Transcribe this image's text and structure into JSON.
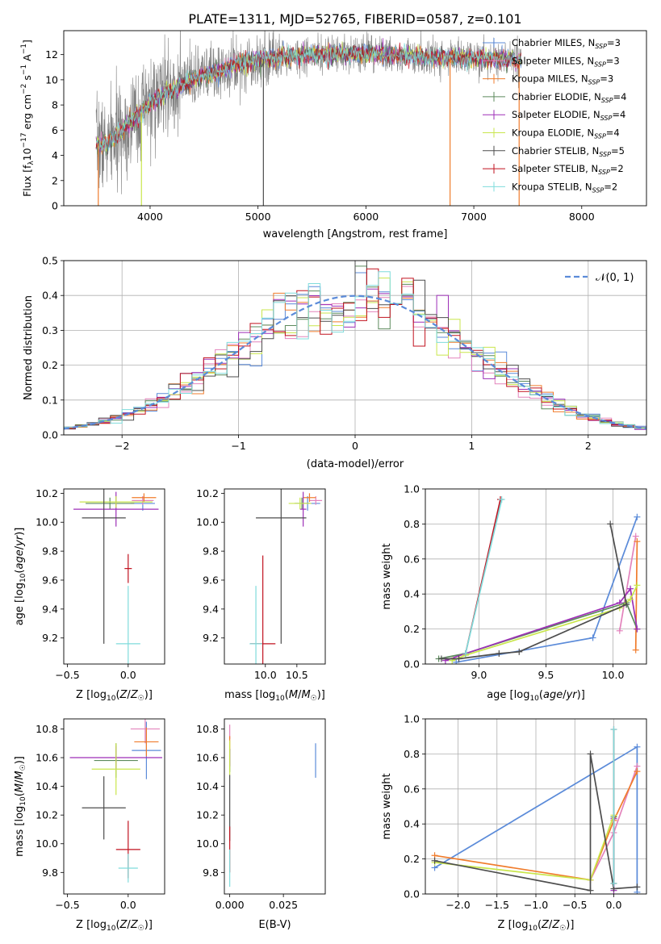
{
  "title": "PLATE=1311, MJD=52765, FIBERID=0587, z=0.101",
  "colors": {
    "Chabrier MILES": "#5b8bd9",
    "Salpeter MILES": "#e383bc",
    "Kroupa MILES": "#f07c2c",
    "Chabrier ELODIE": "#5c8a5c",
    "Salpeter ELODIE": "#9d2fb7",
    "Kroupa ELODIE": "#c9e64c",
    "Chabrier STELIB": "#4d4d4d",
    "Salpeter STELIB": "#c1121f",
    "Kroupa STELIB": "#7fdcdc"
  },
  "chart_data": [
    {
      "id": "spectrum",
      "type": "line",
      "xlabel": "wavelength [Angstrom, rest frame]",
      "ylabel": "Flux [f_λ 10^-17 erg cm^-2 s^-1 A^-1]",
      "xlim": [
        3200,
        8600
      ],
      "ylim": [
        0,
        13.9
      ],
      "xticks": [
        4000,
        5000,
        6000,
        7000,
        8000
      ],
      "yticks": [
        0,
        2,
        4,
        6,
        8,
        10,
        12
      ],
      "grid": false,
      "legend_position": "right",
      "legend": [
        {
          "name": "Chabrier MILES",
          "label": "Chabrier MILES, N",
          "sub": "SSP",
          "suffix": "=3"
        },
        {
          "name": "Salpeter MILES",
          "label": "Salpeter MILES, N",
          "sub": "SSP",
          "suffix": "=3"
        },
        {
          "name": "Kroupa MILES",
          "label": "Kroupa MILES, N",
          "sub": "SSP",
          "suffix": "=3"
        },
        {
          "name": "Chabrier ELODIE",
          "label": "Chabrier ELODIE, N",
          "sub": "SSP",
          "suffix": "=4"
        },
        {
          "name": "Salpeter ELODIE",
          "label": "Salpeter ELODIE, N",
          "sub": "SSP",
          "suffix": "=4"
        },
        {
          "name": "Kroupa ELODIE",
          "label": "Kroupa ELODIE, N",
          "sub": "SSP",
          "suffix": "=4"
        },
        {
          "name": "Chabrier STELIB",
          "label": "Chabrier STELIB, N",
          "sub": "SSP",
          "suffix": "=5"
        },
        {
          "name": "Salpeter STELIB",
          "label": "Salpeter STELIB, N",
          "sub": "SSP",
          "suffix": "=2"
        },
        {
          "name": "Kroupa STELIB",
          "label": "Kroupa STELIB, N",
          "sub": "SSP",
          "suffix": "=2"
        }
      ],
      "model_continuum": {
        "x": [
          3500,
          3600,
          3700,
          3800,
          3900,
          4000,
          4100,
          4200,
          4300,
          4400,
          4500,
          4600,
          4800,
          5000,
          5200,
          5400,
          5600,
          5800,
          6000,
          6200,
          6400,
          6600,
          6800,
          7000,
          7200,
          7400
        ],
        "y": [
          5.0,
          4.8,
          5.6,
          6.6,
          7.2,
          8.2,
          8.8,
          9.2,
          9.6,
          10.0,
          10.3,
          10.6,
          11.2,
          11.6,
          11.8,
          11.9,
          12.0,
          12.0,
          12.1,
          12.0,
          11.9,
          11.8,
          11.8,
          11.7,
          11.7,
          11.6
        ]
      },
      "observed_series": "gray",
      "dropouts": [
        {
          "x": 3520,
          "color": "#f07c2c"
        },
        {
          "x": 3920,
          "color": "#c9e64c"
        },
        {
          "x": 5050,
          "color": "#4d4d4d"
        },
        {
          "x": 6780,
          "color": "#f07c2c"
        },
        {
          "x": 7420,
          "color": "#f07c2c"
        }
      ]
    },
    {
      "id": "residuals",
      "type": "histogram",
      "xlabel": "(data-model)/error",
      "ylabel": "Normed distribution",
      "xlim": [
        -2.5,
        2.5
      ],
      "ylim": [
        0,
        0.5
      ],
      "xticks": [
        -2,
        -1,
        0,
        1,
        2
      ],
      "yticks": [
        0.0,
        0.1,
        0.2,
        0.3,
        0.4,
        0.5
      ],
      "grid": true,
      "legend_label": "𝒩(0, 1)",
      "legend_position": "upper right",
      "reference_curve": "normal(0,1)",
      "bin_width": 0.1
    },
    {
      "id": "age_vs_Z",
      "type": "errorbar",
      "xlabel": "Z [log₁₀(Z/Z☉)]",
      "ylabel": "age  [log₁₀(age/yr)]",
      "xlim": [
        -0.53,
        0.3
      ],
      "ylim": [
        9.02,
        10.23
      ],
      "xticks": [
        -0.5,
        0.0
      ],
      "xtick_labels": [
        "−0.5",
        "0.0"
      ],
      "yticks": [
        9.2,
        9.4,
        9.6,
        9.8,
        10.0,
        10.2
      ],
      "points": [
        {
          "name": "Chabrier MILES",
          "x": 0.12,
          "xerr": 0.1,
          "y": 10.13,
          "yerr": 0.05
        },
        {
          "name": "Salpeter MILES",
          "x": 0.12,
          "xerr": 0.09,
          "y": 10.15,
          "yerr": 0.03
        },
        {
          "name": "Kroupa MILES",
          "x": 0.13,
          "xerr": 0.1,
          "y": 10.17,
          "yerr": 0.03
        },
        {
          "name": "Chabrier ELODIE",
          "x": -0.15,
          "xerr": 0.2,
          "y": 10.13,
          "yerr": 0.04
        },
        {
          "name": "Salpeter ELODIE",
          "x": -0.1,
          "xerr": 0.35,
          "y": 10.09,
          "yerr": 0.12
        },
        {
          "name": "Kroupa ELODIE",
          "x": -0.1,
          "xerr": 0.3,
          "y": 10.14,
          "yerr": 0.04
        },
        {
          "name": "Chabrier STELIB",
          "x": -0.2,
          "xerr": 0.18,
          "y": 10.03,
          "yerr": 0.87
        },
        {
          "name": "Salpeter STELIB",
          "x": 0.0,
          "xerr": 0.03,
          "y": 9.68,
          "yerr": 0.1
        },
        {
          "name": "Kroupa STELIB",
          "x": 0.0,
          "xerr": 0.1,
          "y": 9.16,
          "yerr": 0.4
        }
      ]
    },
    {
      "id": "age_vs_mass",
      "type": "errorbar",
      "xlabel": "mass [log₁₀(M/M☉)]",
      "ylabel": "",
      "xlim": [
        9.35,
        10.95
      ],
      "ylim": [
        9.02,
        10.23
      ],
      "xticks": [
        10.0,
        10.5
      ],
      "yticks": [
        9.2,
        9.4,
        9.6,
        9.8,
        10.0,
        10.2
      ],
      "points": [
        {
          "name": "Chabrier MILES",
          "x": 10.67,
          "xerr": 0.2,
          "y": 10.13,
          "yerr": 0.05
        },
        {
          "name": "Salpeter MILES",
          "x": 10.8,
          "xerr": 0.1,
          "y": 10.15,
          "yerr": 0.03
        },
        {
          "name": "Kroupa MILES",
          "x": 10.7,
          "xerr": 0.1,
          "y": 10.17,
          "yerr": 0.03
        },
        {
          "name": "Chabrier ELODIE",
          "x": 10.58,
          "xerr": 0.12,
          "y": 10.13,
          "yerr": 0.04
        },
        {
          "name": "Salpeter ELODIE",
          "x": 10.6,
          "xerr": 0.05,
          "y": 10.09,
          "yerr": 0.12
        },
        {
          "name": "Kroupa ELODIE",
          "x": 10.55,
          "xerr": 0.18,
          "y": 10.13,
          "yerr": 0.04
        },
        {
          "name": "Chabrier STELIB",
          "x": 10.25,
          "xerr": 0.4,
          "y": 10.03,
          "yerr": 0.87
        },
        {
          "name": "Salpeter STELIB",
          "x": 9.96,
          "xerr": 0.2,
          "y": 9.16,
          "yerr": 0.61
        },
        {
          "name": "Kroupa STELIB",
          "x": 9.85,
          "xerr": 0.1,
          "y": 9.16,
          "yerr": 0.4
        }
      ]
    },
    {
      "id": "weight_vs_age",
      "type": "line",
      "xlabel": "age  [log₁₀(age/yr)]",
      "ylabel": "mass weight",
      "xlim": [
        8.6,
        10.25
      ],
      "ylim": [
        0,
        1.0
      ],
      "xticks": [
        9.0,
        9.5,
        10.0
      ],
      "yticks": [
        0.0,
        0.2,
        0.4,
        0.6,
        0.8,
        1.0
      ],
      "grid": true,
      "series": [
        {
          "name": "Chabrier MILES",
          "x": [
            8.83,
            9.85,
            10.18
          ],
          "y": [
            0.01,
            0.15,
            0.84
          ]
        },
        {
          "name": "Salpeter MILES",
          "x": [
            10.05,
            10.17
          ],
          "y": [
            0.19,
            0.73
          ]
        },
        {
          "name": "Kroupa MILES",
          "x": [
            10.17,
            10.18
          ],
          "y": [
            0.08,
            0.7
          ]
        },
        {
          "name": "Chabrier ELODIE",
          "x": [
            8.7,
            8.9,
            10.1,
            10.18
          ],
          "y": [
            0.03,
            0.06,
            0.35,
            0.2
          ]
        },
        {
          "name": "Salpeter ELODIE",
          "x": [
            8.75,
            8.9,
            10.05,
            10.13,
            10.18
          ],
          "y": [
            0.02,
            0.06,
            0.35,
            0.43,
            0.2
          ]
        },
        {
          "name": "Kroupa ELODIE",
          "x": [
            8.8,
            8.9,
            10.05,
            10.13,
            10.18
          ],
          "y": [
            0.02,
            0.05,
            0.32,
            0.37,
            0.45
          ]
        },
        {
          "name": "Chabrier STELIB",
          "x": [
            8.72,
            8.85,
            9.15,
            9.3,
            10.1,
            9.98
          ],
          "y": [
            0.03,
            0.03,
            0.06,
            0.07,
            0.34,
            0.8
          ]
        },
        {
          "name": "Salpeter STELIB",
          "x": [
            9.16,
            8.9
          ],
          "y": [
            0.94,
            0.06
          ]
        },
        {
          "name": "Kroupa STELIB",
          "x": [
            9.17,
            8.9
          ],
          "y": [
            0.94,
            0.06
          ]
        }
      ]
    },
    {
      "id": "mass_vs_Z",
      "type": "errorbar",
      "xlabel": "Z [log₁₀(Z/Z☉)]",
      "ylabel": "mass [log₁₀(M/M☉)]",
      "xlim": [
        -0.53,
        0.3
      ],
      "ylim": [
        9.65,
        10.87
      ],
      "xticks": [
        -0.5,
        0.0
      ],
      "xtick_labels": [
        "−0.5",
        "0.0"
      ],
      "yticks": [
        9.8,
        10.0,
        10.2,
        10.4,
        10.6,
        10.8
      ],
      "points": [
        {
          "name": "Chabrier MILES",
          "x": 0.15,
          "xerr": 0.12,
          "y": 10.65,
          "yerr": 0.2
        },
        {
          "name": "Salpeter MILES",
          "x": 0.14,
          "xerr": 0.12,
          "y": 10.8,
          "yerr": 0.1
        },
        {
          "name": "Kroupa MILES",
          "x": 0.15,
          "xerr": 0.1,
          "y": 10.71,
          "yerr": 0.1
        },
        {
          "name": "Chabrier ELODIE",
          "x": -0.1,
          "xerr": 0.18,
          "y": 10.58,
          "yerr": 0.12
        },
        {
          "name": "Salpeter ELODIE",
          "x": -0.1,
          "xerr": 0.38,
          "y": 10.6,
          "yerr": 0.08
        },
        {
          "name": "Kroupa ELODIE",
          "x": -0.1,
          "xerr": 0.2,
          "y": 10.52,
          "yerr": 0.18
        },
        {
          "name": "Chabrier STELIB",
          "x": -0.2,
          "xerr": 0.18,
          "y": 10.25,
          "yerr": 0.22
        },
        {
          "name": "Salpeter STELIB",
          "x": 0.0,
          "xerr": 0.1,
          "y": 9.96,
          "yerr": 0.2
        },
        {
          "name": "Kroupa STELIB",
          "x": 0.0,
          "xerr": 0.08,
          "y": 9.83,
          "yerr": 0.1
        }
      ]
    },
    {
      "id": "mass_vs_ebv",
      "type": "errorbar",
      "xlabel": "E(B-V)",
      "ylabel": "",
      "xlim": [
        -0.0025,
        0.0445
      ],
      "ylim": [
        9.65,
        10.87
      ],
      "xticks": [
        0.0,
        0.025
      ],
      "xtick_labels": [
        "0.000",
        "0.025"
      ],
      "yticks": [
        9.8,
        10.0,
        10.2,
        10.4,
        10.6,
        10.8
      ],
      "points": [
        {
          "name": "Chabrier MILES",
          "x": 0.04,
          "xerr": 0,
          "y": 10.58,
          "yerr": 0.12
        },
        {
          "name": "Salpeter MILES",
          "x": 0.0,
          "xerr": 0,
          "y": 10.78,
          "yerr": 0.05
        },
        {
          "name": "Kroupa MILES",
          "x": 0.0,
          "xerr": 0,
          "y": 10.7,
          "yerr": 0.05
        },
        {
          "name": "Chabrier ELODIE",
          "x": 0.0,
          "xerr": 0,
          "y": 10.58,
          "yerr": 0.08
        },
        {
          "name": "Salpeter ELODIE",
          "x": 0.0,
          "xerr": 0,
          "y": 10.6,
          "yerr": 0.06
        },
        {
          "name": "Kroupa ELODIE",
          "x": 0.0,
          "xerr": 0,
          "y": 10.6,
          "yerr": 0.12
        },
        {
          "name": "Chabrier STELIB",
          "x": 0.0,
          "xerr": 0,
          "y": 10.25,
          "yerr": 0.23
        },
        {
          "name": "Salpeter STELIB",
          "x": 0.0,
          "xerr": 0,
          "y": 9.96,
          "yerr": 0.16
        },
        {
          "name": "Kroupa STELIB",
          "x": 0.0,
          "xerr": 0,
          "y": 9.83,
          "yerr": 0.13
        }
      ]
    },
    {
      "id": "weight_vs_Z",
      "type": "line",
      "xlabel": "Z [log₁₀(Z/Z☉)]",
      "ylabel": "mass weight",
      "xlim": [
        -2.42,
        0.42
      ],
      "ylim": [
        0,
        1.0
      ],
      "xticks": [
        -2.0,
        -1.5,
        -1.0,
        -0.5,
        0.0
      ],
      "xtick_labels": [
        "−2.0",
        "−1.5",
        "−1.0",
        "−0.5",
        "0.0"
      ],
      "yticks": [
        0.0,
        0.2,
        0.4,
        0.6,
        0.8,
        1.0
      ],
      "grid": true,
      "series": [
        {
          "name": "Chabrier MILES",
          "x": [
            -2.3,
            0.3,
            0.3
          ],
          "y": [
            0.15,
            0.84,
            0.01
          ]
        },
        {
          "name": "Salpeter MILES",
          "x": [
            -0.3,
            0.0,
            0.3
          ],
          "y": [
            0.08,
            0.35,
            0.73
          ]
        },
        {
          "name": "Kroupa MILES",
          "x": [
            -2.3,
            -0.3,
            0.0,
            0.3
          ],
          "y": [
            0.22,
            0.08,
            0.42,
            0.7
          ]
        },
        {
          "name": "Chabrier ELODIE",
          "x": [
            0.0,
            0.0
          ],
          "y": [
            0.06,
            0.44
          ]
        },
        {
          "name": "Salpeter ELODIE",
          "x": [
            0.0,
            0.0
          ],
          "y": [
            0.02,
            0.43
          ]
        },
        {
          "name": "Kroupa ELODIE",
          "x": [
            -2.3,
            -0.3,
            0.0
          ],
          "y": [
            0.18,
            0.08,
            0.45
          ]
        },
        {
          "name": "Chabrier STELIB",
          "x": [
            -2.3,
            -0.3,
            -0.3,
            0.0,
            0.3
          ],
          "y": [
            0.19,
            0.02,
            0.8,
            0.03,
            0.04
          ]
        },
        {
          "name": "Salpeter STELIB",
          "x": [
            0.0,
            0.0
          ],
          "y": [
            0.94,
            0.06
          ]
        },
        {
          "name": "Kroupa STELIB",
          "x": [
            0.0,
            0.0
          ],
          "y": [
            0.94,
            0.06
          ]
        }
      ]
    }
  ]
}
